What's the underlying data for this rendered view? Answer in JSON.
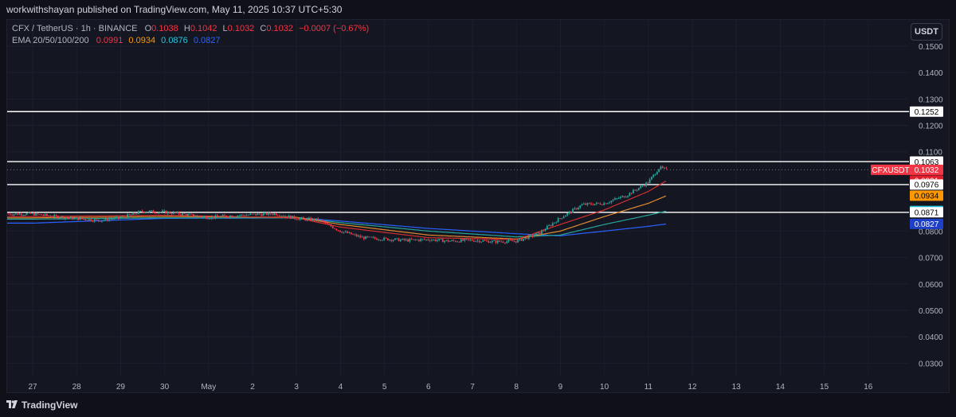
{
  "header": {
    "published_text": "workwithshayan published on TradingView.com, May 11, 2025 10:37 UTC+5:30"
  },
  "legend": {
    "symbol_line": "CFX / TetherUS · 1h · BINANCE",
    "ohlc": [
      {
        "label": "O",
        "value": "0.1038"
      },
      {
        "label": "H",
        "value": "0.1042"
      },
      {
        "label": "L",
        "value": "0.1032"
      },
      {
        "label": "C",
        "value": "0.1032"
      }
    ],
    "change": "−0.0007 (−0.67%)",
    "ema_label": "EMA 20/50/100/200",
    "ema_values": [
      {
        "value": "0.0991",
        "color": "#f23645"
      },
      {
        "value": "0.0934",
        "color": "#ff9800"
      },
      {
        "value": "0.0876",
        "color": "#26c6da"
      },
      {
        "value": "0.0827",
        "color": "#2962ff"
      }
    ]
  },
  "currency_button": "USDT",
  "footer": {
    "brand": "TradingView"
  },
  "colors": {
    "background": "#141622",
    "grid": "#1c1f2c",
    "up": "#26a69a",
    "down": "#f23645",
    "hline": "#ffffff",
    "ema20": "#d32f2f",
    "ema50": "#e08a2e",
    "ema100": "#26a69a",
    "ema200": "#2962ff"
  },
  "chart_data": {
    "type": "candlestick",
    "symbol": "CFXUSDT",
    "interval": "1h",
    "y_ticks": [
      "0.1500",
      "0.1400",
      "0.1300",
      "0.1200",
      "0.1100",
      "0.0800",
      "0.0700",
      "0.0600",
      "0.0500",
      "0.0400",
      "0.0300"
    ],
    "x_ticks": [
      "27",
      "28",
      "29",
      "30",
      "May",
      "2",
      "3",
      "4",
      "5",
      "6",
      "7",
      "8",
      "9",
      "10",
      "11",
      "12",
      "13",
      "14",
      "15",
      "16"
    ],
    "ylim": [
      0.025,
      0.1575
    ],
    "x_range": [
      26.4,
      16.6
    ],
    "horizontal_levels": [
      0.1252,
      0.1063,
      0.0976,
      0.0871
    ],
    "price_labels": [
      {
        "text": "0.1252",
        "value": 0.1252,
        "bg": "#ffffff",
        "fg": "#000000"
      },
      {
        "text": "0.1063",
        "value": 0.1063,
        "bg": "#ffffff",
        "fg": "#000000"
      },
      {
        "text": "CFXUSDT",
        "value": 0.1032,
        "bg": "#f23645",
        "fg": "#ffffff",
        "left": true
      },
      {
        "text": "0.1032",
        "value": 0.1032,
        "bg": "#f23645",
        "fg": "#ffffff"
      },
      {
        "text": "0.0991",
        "value": 0.0991,
        "bg": "#e01e2b",
        "fg": "#ffffff"
      },
      {
        "text": "0.0976",
        "value": 0.0976,
        "bg": "#ffffff",
        "fg": "#000000"
      },
      {
        "text": "0.0934",
        "value": 0.0934,
        "bg": "#ff9800",
        "fg": "#000000"
      },
      {
        "text": "0.0876",
        "value": 0.0876,
        "bg": "#26c6da",
        "fg": "#000000"
      },
      {
        "text": "0.0871",
        "value": 0.0871,
        "bg": "#ffffff",
        "fg": "#000000"
      },
      {
        "text": "0.0827",
        "value": 0.0827,
        "bg": "#1e40c8",
        "fg": "#ffffff"
      }
    ],
    "price_path": [
      [
        "Apr 27",
        0.0865
      ],
      [
        "Apr 27 12h",
        0.0855
      ],
      [
        "Apr 28",
        0.0848
      ],
      [
        "Apr 28 12h",
        0.084
      ],
      [
        "Apr 29",
        0.085
      ],
      [
        "Apr 29 12h",
        0.0875
      ],
      [
        "Apr 30",
        0.0872
      ],
      [
        "Apr 30 12h",
        0.0862
      ],
      [
        "May 1",
        0.0852
      ],
      [
        "May 1 12h",
        0.0858
      ],
      [
        "May 2",
        0.0862
      ],
      [
        "May 2 12h",
        0.0866
      ],
      [
        "May 3",
        0.0848
      ],
      [
        "May 3 12h",
        0.0842
      ],
      [
        "May 4",
        0.08
      ],
      [
        "May 4 12h",
        0.0775
      ],
      [
        "May 5",
        0.077
      ],
      [
        "May 5 12h",
        0.0765
      ],
      [
        "May 6",
        0.0768
      ],
      [
        "May 6 12h",
        0.0762
      ],
      [
        "May 7",
        0.0765
      ],
      [
        "May 7 12h",
        0.076
      ],
      [
        "May 8",
        0.0762
      ],
      [
        "May 8 12h",
        0.079
      ],
      [
        "May 9",
        0.085
      ],
      [
        "May 9 12h",
        0.09
      ],
      [
        "May 10",
        0.0905
      ],
      [
        "May 10 12h",
        0.0935
      ],
      [
        "May 11",
        0.0985
      ],
      [
        "May 11 6h",
        0.104
      ],
      [
        "May 11 10h",
        0.1032
      ]
    ],
    "ema20_path": [
      [
        "Apr 27",
        0.0855
      ],
      [
        "Apr 30",
        0.086
      ],
      [
        "May 3",
        0.085
      ],
      [
        "May 4",
        0.0815
      ],
      [
        "May 6",
        0.0775
      ],
      [
        "May 8",
        0.0768
      ],
      [
        "May 9",
        0.0825
      ],
      [
        "May 10",
        0.088
      ],
      [
        "May 11",
        0.095
      ],
      [
        "May 11 10h",
        0.0991
      ]
    ],
    "ema50_path": [
      [
        "Apr 27",
        0.085
      ],
      [
        "Apr 30",
        0.0855
      ],
      [
        "May 3",
        0.0852
      ],
      [
        "May 4",
        0.0825
      ],
      [
        "May 6",
        0.0785
      ],
      [
        "May 8",
        0.077
      ],
      [
        "May 9",
        0.08
      ],
      [
        "May 10",
        0.0855
      ],
      [
        "May 11",
        0.0905
      ],
      [
        "May 11 10h",
        0.0934
      ]
    ],
    "ema100_path": [
      [
        "Apr 27",
        0.0845
      ],
      [
        "Apr 30",
        0.085
      ],
      [
        "May 3",
        0.085
      ],
      [
        "May 4",
        0.0832
      ],
      [
        "May 6",
        0.08
      ],
      [
        "May 8",
        0.0778
      ],
      [
        "May 9",
        0.0785
      ],
      [
        "May 10",
        0.0825
      ],
      [
        "May 11",
        0.086
      ],
      [
        "May 11 10h",
        0.0876
      ]
    ],
    "ema200_path": [
      [
        "Apr 27",
        0.083
      ],
      [
        "Apr 30",
        0.0848
      ],
      [
        "May 3",
        0.085
      ],
      [
        "May 4",
        0.0838
      ],
      [
        "May 6",
        0.081
      ],
      [
        "May 8",
        0.079
      ],
      [
        "May 9",
        0.0782
      ],
      [
        "May 10",
        0.08
      ],
      [
        "May 11",
        0.0818
      ],
      [
        "May 11 10h",
        0.0827
      ]
    ]
  }
}
